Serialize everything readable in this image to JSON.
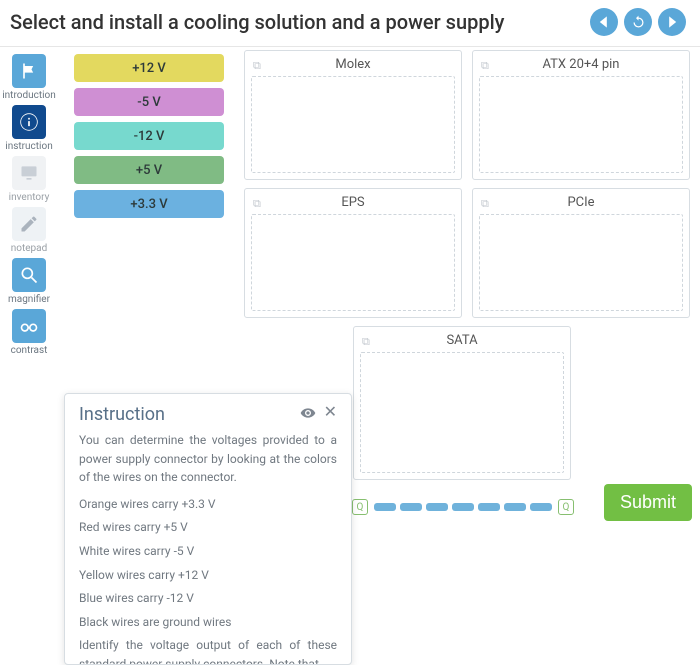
{
  "header": {
    "title": "Select and install a cooling solution and a power supply"
  },
  "nav": {
    "prev_icon": "triangle-left",
    "refresh_icon": "refresh",
    "next_icon": "triangle-right"
  },
  "sidebar": [
    {
      "key": "introduction",
      "label": "introduction",
      "icon": "flag",
      "active": true,
      "bg": "#5aa7d8",
      "fg": "#ffffff"
    },
    {
      "key": "instruction",
      "label": "instruction",
      "icon": "info",
      "active": true,
      "bg": "#104a8e",
      "fg": "#ffffff"
    },
    {
      "key": "inventory",
      "label": "inventory",
      "icon": "monitor",
      "active": false,
      "bg": "#f0f2f4",
      "fg": "#c9cfd6"
    },
    {
      "key": "notepad",
      "label": "notepad",
      "icon": "pencil",
      "active": false,
      "bg": "#eef2f5",
      "fg": "#aab3bd"
    },
    {
      "key": "magnifier",
      "label": "magnifier",
      "icon": "magnify",
      "active": true,
      "bg": "#5aa7d8",
      "fg": "#ffffff"
    },
    {
      "key": "contrast",
      "label": "contrast",
      "icon": "glasses",
      "active": true,
      "bg": "#5aa7d8",
      "fg": "#ffffff"
    }
  ],
  "voltages": [
    {
      "label": "+12 V",
      "color": "#e3d95f"
    },
    {
      "label": "-5 V",
      "color": "#cf8fd3"
    },
    {
      "label": "-12 V",
      "color": "#77d9ce"
    },
    {
      "label": "+5 V",
      "color": "#80bb84"
    },
    {
      "label": "+3.3 V",
      "color": "#6bb1e0"
    }
  ],
  "zones": {
    "row1": [
      {
        "title": "Molex"
      },
      {
        "title": "ATX 20+4 pin"
      }
    ],
    "row2": [
      {
        "title": "EPS"
      },
      {
        "title": "PCIe"
      }
    ],
    "single": {
      "title": "SATA"
    }
  },
  "progress": {
    "segment_count": 7,
    "segment_color": "#6fb2db",
    "marker_color": "#87bf70"
  },
  "submit": {
    "label": "Submit",
    "bg": "#72bf44"
  },
  "instruction_panel": {
    "title": "Instruction",
    "intro": "You can determine the voltages provided to a power supply connector by looking at the colors of the wires on the connector.",
    "lines": [
      "Orange wires carry +3.3 V",
      "Red wires carry +5 V",
      "White wires carry -5 V",
      "Yellow wires carry +12 V",
      "Blue wires carry -12 V",
      "Black wires are ground wires"
    ],
    "outro": "Identify the voltage output of each of these standard power supply connectors. Note that"
  }
}
